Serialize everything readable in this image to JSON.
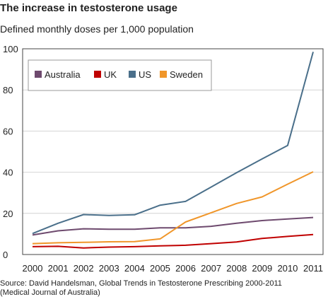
{
  "chart_data": {
    "type": "line",
    "title": "The increase in testosterone usage",
    "subtitle": "Defined monthly doses per 1,000 population",
    "x": [
      "2000",
      "2001",
      "2002",
      "2003",
      "2004",
      "2005",
      "2006",
      "2007",
      "2008",
      "2009",
      "2010",
      "2011"
    ],
    "ylim": [
      0,
      100
    ],
    "yticks": [
      0,
      20,
      40,
      60,
      80,
      100
    ],
    "grid": true,
    "legend_position": "top-left",
    "series": [
      {
        "name": "Australia",
        "color": "#6e4a6e",
        "values": [
          9.5,
          11.5,
          12.5,
          12.3,
          12.3,
          13,
          13,
          13.7,
          15.2,
          16.5,
          17.3,
          18
        ]
      },
      {
        "name": "UK",
        "color": "#c00000",
        "values": [
          3.8,
          4,
          3.2,
          3.6,
          3.8,
          4.2,
          4.5,
          5.3,
          6.1,
          7.8,
          8.8,
          9.7
        ]
      },
      {
        "name": "US",
        "color": "#4a6f8a",
        "values": [
          10.2,
          15.2,
          19.4,
          19,
          19.3,
          24,
          25.8,
          32.8,
          39.8,
          46.5,
          53,
          98.5
        ]
      },
      {
        "name": "Sweden",
        "color": "#f0962a",
        "values": [
          5.3,
          5.7,
          5.9,
          6.2,
          6.3,
          7.6,
          15.8,
          20.3,
          24.8,
          28,
          34.2,
          40.2
        ]
      }
    ]
  },
  "source_line1": "Source: David Handelsman, Global Trends in Testosterone Prescribing 2000-2011",
  "source_line2": "(Medical Journal of Australia)"
}
